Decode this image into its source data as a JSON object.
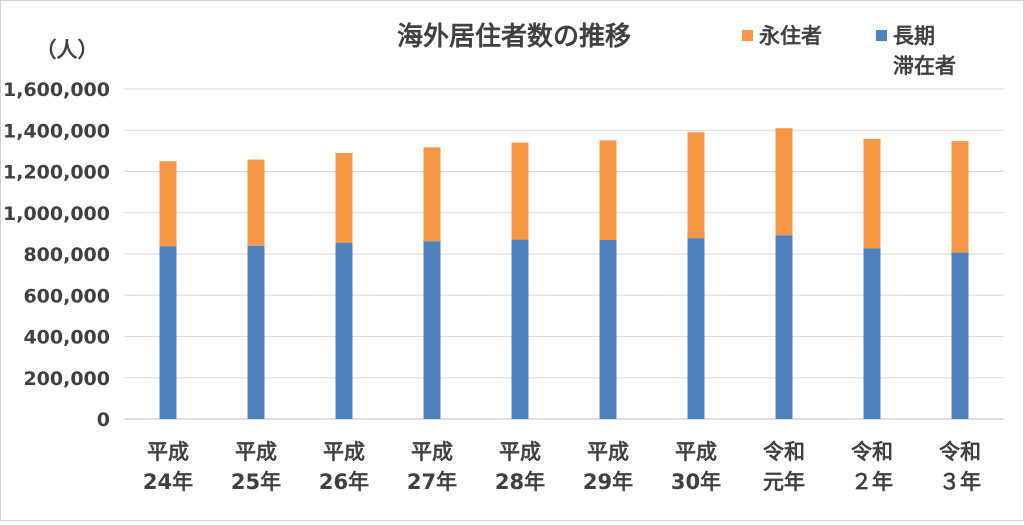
{
  "chart_data": {
    "type": "bar",
    "stacked": true,
    "title": "海外居住者数の推移",
    "ylabel": "（人）",
    "ylim": [
      0,
      1600000
    ],
    "yticks": [
      "0",
      "200,000",
      "400,000",
      "600,000",
      "800,000",
      "1,000,000",
      "1,200,000",
      "1,400,000",
      "1,600,000"
    ],
    "categories": [
      [
        "平成",
        "24年"
      ],
      [
        "平成",
        "25年"
      ],
      [
        "平成",
        "26年"
      ],
      [
        "平成",
        "27年"
      ],
      [
        "平成",
        "28年"
      ],
      [
        "平成",
        "29年"
      ],
      [
        "平成",
        "30年"
      ],
      [
        "令和",
        "元年"
      ],
      [
        "令和",
        "２年"
      ],
      [
        "令和",
        "３年"
      ]
    ],
    "series": [
      {
        "name": "長期滞在者",
        "color": "#4f81bd",
        "values": [
          838000,
          840000,
          855000,
          862000,
          870000,
          868000,
          877000,
          891000,
          828000,
          807000
        ]
      },
      {
        "name": "永住者",
        "color": "#f79646",
        "values": [
          412000,
          418000,
          435000,
          455000,
          470000,
          483000,
          513000,
          519000,
          530000,
          540000
        ]
      }
    ],
    "legend": {
      "position": "top-right",
      "items": [
        {
          "series": "永住者",
          "lines": [
            "永住者"
          ],
          "color": "#f79646"
        },
        {
          "series": "長期滞在者",
          "lines": [
            "長期",
            "滞在者"
          ],
          "color": "#4f81bd"
        }
      ]
    },
    "grid": true
  }
}
